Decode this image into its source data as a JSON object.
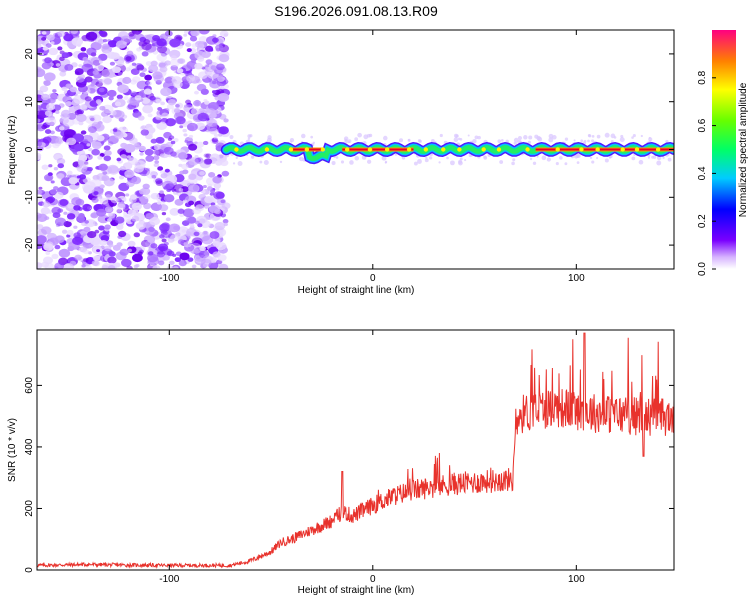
{
  "title": "S196.2026.091.08.13.R09",
  "chart_data": [
    {
      "type": "heatmap",
      "xlabel": "Height of straight line (km)",
      "ylabel": "Frequency (Hz)",
      "xlim": [
        -165,
        148
      ],
      "ylim": [
        -25,
        25
      ],
      "x_ticks": [
        -100,
        0,
        100
      ],
      "y_ticks": [
        20,
        10,
        0,
        -10,
        -20
      ],
      "colorbar": {
        "label": "Normalized spectral amplitude",
        "range": [
          0.0,
          1.0
        ],
        "ticks": [
          0.0,
          0.2,
          0.4,
          0.6,
          0.8
        ]
      },
      "description_points": {
        "noise_region_x": [
          -165,
          -72
        ],
        "signal_line_x": [
          -72,
          148
        ],
        "signal_freq_hz": 0,
        "high_amplitude_segments_x": [
          [
            -40,
            -25
          ],
          [
            -15,
            0
          ],
          [
            0,
            20
          ],
          [
            80,
            148
          ]
        ]
      }
    },
    {
      "type": "line",
      "xlabel": "Height of straight line (km)",
      "ylabel": "SNR (10 * v/v)",
      "xlim": [
        -165,
        148
      ],
      "ylim": [
        0,
        780
      ],
      "x_ticks": [
        -100,
        0,
        100
      ],
      "y_ticks": [
        0,
        200,
        400,
        600
      ],
      "series": [
        {
          "name": "SNR",
          "color": "#e8322c",
          "x": [
            -165,
            -140,
            -120,
            -100,
            -80,
            -70,
            -60,
            -50,
            -45,
            -40,
            -30,
            -20,
            -15,
            -10,
            0,
            10,
            20,
            30,
            40,
            50,
            60,
            69,
            70,
            80,
            90,
            100,
            110,
            120,
            130,
            140,
            148
          ],
          "y": [
            15,
            18,
            16,
            15,
            15,
            15,
            30,
            60,
            90,
            100,
            130,
            160,
            190,
            175,
            210,
            240,
            260,
            270,
            280,
            285,
            290,
            295,
            500,
            520,
            530,
            520,
            510,
            505,
            500,
            500,
            495
          ]
        }
      ]
    }
  ]
}
